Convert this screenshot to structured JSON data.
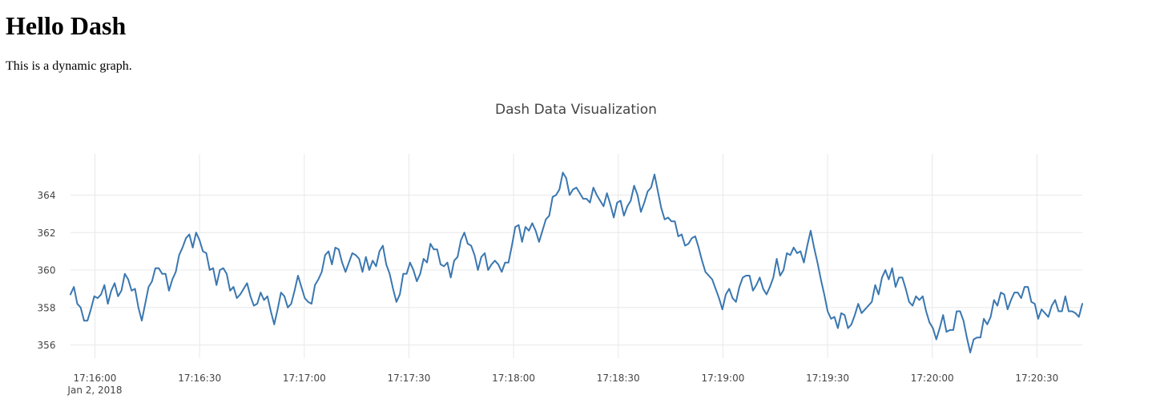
{
  "page": {
    "heading": "Hello Dash",
    "description": "This is a dynamic graph."
  },
  "colors": {
    "line": "#3a77b0",
    "grid": "#e8e8e8",
    "tick_text": "#444444",
    "title_text": "#444444"
  },
  "chart_data": {
    "type": "line",
    "title": "Dash Data Visualization",
    "xlabel": "",
    "ylabel": "",
    "grid": true,
    "x_start": "2018-01-02 17:15:53",
    "x_end": "2018-01-02 17:20:43",
    "x_ticks": [
      {
        "time": "17:16:00",
        "sub": "Jan 2, 2018"
      },
      {
        "time": "17:16:30",
        "sub": ""
      },
      {
        "time": "17:17:00",
        "sub": ""
      },
      {
        "time": "17:17:30",
        "sub": ""
      },
      {
        "time": "17:18:00",
        "sub": ""
      },
      {
        "time": "17:18:30",
        "sub": ""
      },
      {
        "time": "17:19:00",
        "sub": ""
      },
      {
        "time": "17:19:30",
        "sub": ""
      },
      {
        "time": "17:20:00",
        "sub": ""
      },
      {
        "time": "17:20:30",
        "sub": ""
      }
    ],
    "y_ticks": [
      "356",
      "358",
      "360",
      "362",
      "364"
    ],
    "ylim": [
      355.3,
      366.2
    ],
    "series": [
      {
        "values": [
          358.7,
          359.1,
          358.2,
          358.0,
          357.3,
          357.3,
          357.9,
          358.6,
          358.5,
          358.7,
          359.2,
          358.2,
          358.9,
          359.3,
          358.6,
          358.9,
          359.8,
          359.5,
          358.9,
          359.0,
          358.0,
          357.3,
          358.2,
          359.1,
          359.4,
          360.1,
          360.1,
          359.8,
          359.8,
          358.9,
          359.5,
          359.9,
          360.8,
          361.2,
          361.7,
          361.9,
          361.2,
          362.0,
          361.6,
          361.0,
          360.9,
          360.0,
          360.1,
          359.2,
          360.0,
          360.1,
          359.8,
          358.9,
          359.1,
          358.5,
          358.7,
          359.0,
          359.3,
          358.6,
          358.1,
          358.2,
          358.8,
          358.4,
          358.6,
          357.8,
          357.1,
          357.9,
          358.8,
          358.6,
          358.0,
          358.2,
          358.9,
          359.7,
          359.1,
          358.5,
          358.3,
          358.2,
          359.2,
          359.5,
          359.9,
          360.8,
          361.0,
          360.3,
          361.2,
          361.1,
          360.4,
          359.9,
          360.4,
          360.9,
          360.8,
          360.6,
          359.9,
          360.7,
          360.0,
          360.5,
          360.2,
          361.0,
          361.3,
          360.3,
          359.8,
          359.0,
          358.3,
          358.7,
          359.8,
          359.8,
          360.4,
          360.0,
          359.4,
          359.8,
          360.6,
          360.4,
          361.4,
          361.1,
          361.1,
          360.3,
          360.2,
          360.4,
          359.6,
          360.5,
          360.7,
          361.6,
          362.0,
          361.4,
          361.3,
          360.8,
          360.0,
          360.7,
          360.9,
          360.0,
          360.3,
          360.5,
          360.3,
          359.9,
          360.4,
          360.4,
          361.3,
          362.3,
          362.4,
          361.5,
          362.3,
          362.1,
          362.5,
          362.1,
          361.5,
          362.1,
          362.7,
          362.9,
          363.9,
          364.0,
          364.3,
          365.2,
          364.9,
          364.0,
          364.3,
          364.4,
          364.1,
          363.8,
          363.8,
          363.6,
          364.4,
          364.0,
          363.7,
          363.4,
          364.1,
          363.5,
          362.8,
          363.6,
          363.7,
          362.9,
          363.4,
          363.7,
          364.5,
          364.0,
          363.1,
          363.6,
          364.2,
          364.4,
          365.1,
          364.2,
          363.3,
          362.7,
          362.8,
          362.6,
          362.6,
          361.8,
          361.9,
          361.3,
          361.4,
          361.7,
          361.8,
          361.2,
          360.5,
          359.9,
          359.7,
          359.5,
          359.0,
          358.5,
          357.9,
          358.7,
          359.0,
          358.5,
          358.3,
          359.1,
          359.6,
          359.7,
          359.7,
          358.9,
          359.2,
          359.6,
          359.0,
          358.7,
          359.1,
          359.6,
          360.6,
          359.7,
          360.0,
          360.9,
          360.8,
          361.2,
          360.9,
          361.0,
          360.4,
          361.3,
          362.1,
          361.2,
          360.4,
          359.5,
          358.7,
          357.8,
          357.4,
          357.5,
          356.9,
          357.7,
          357.6,
          356.9,
          357.1,
          357.6,
          358.2,
          357.7,
          357.9,
          358.1,
          358.3,
          359.2,
          358.7,
          359.6,
          360.0,
          359.5,
          360.1,
          359.1,
          359.6,
          359.6,
          359.0,
          358.3,
          358.1,
          358.6,
          358.4,
          358.6,
          357.8,
          357.2,
          356.9,
          356.3,
          356.9,
          357.6,
          356.7,
          356.8,
          356.8,
          357.8,
          357.8,
          357.3,
          356.4,
          355.6,
          356.3,
          356.4,
          356.4,
          357.4,
          357.1,
          357.5,
          358.4,
          358.1,
          358.8,
          358.7,
          357.9,
          358.4,
          358.8,
          358.8,
          358.5,
          359.1,
          359.1,
          358.3,
          358.2,
          357.4,
          357.9,
          357.7,
          357.5,
          358.1,
          358.4,
          357.8,
          357.8,
          358.6,
          357.8,
          357.8,
          357.7,
          357.5,
          358.2
        ]
      }
    ]
  }
}
